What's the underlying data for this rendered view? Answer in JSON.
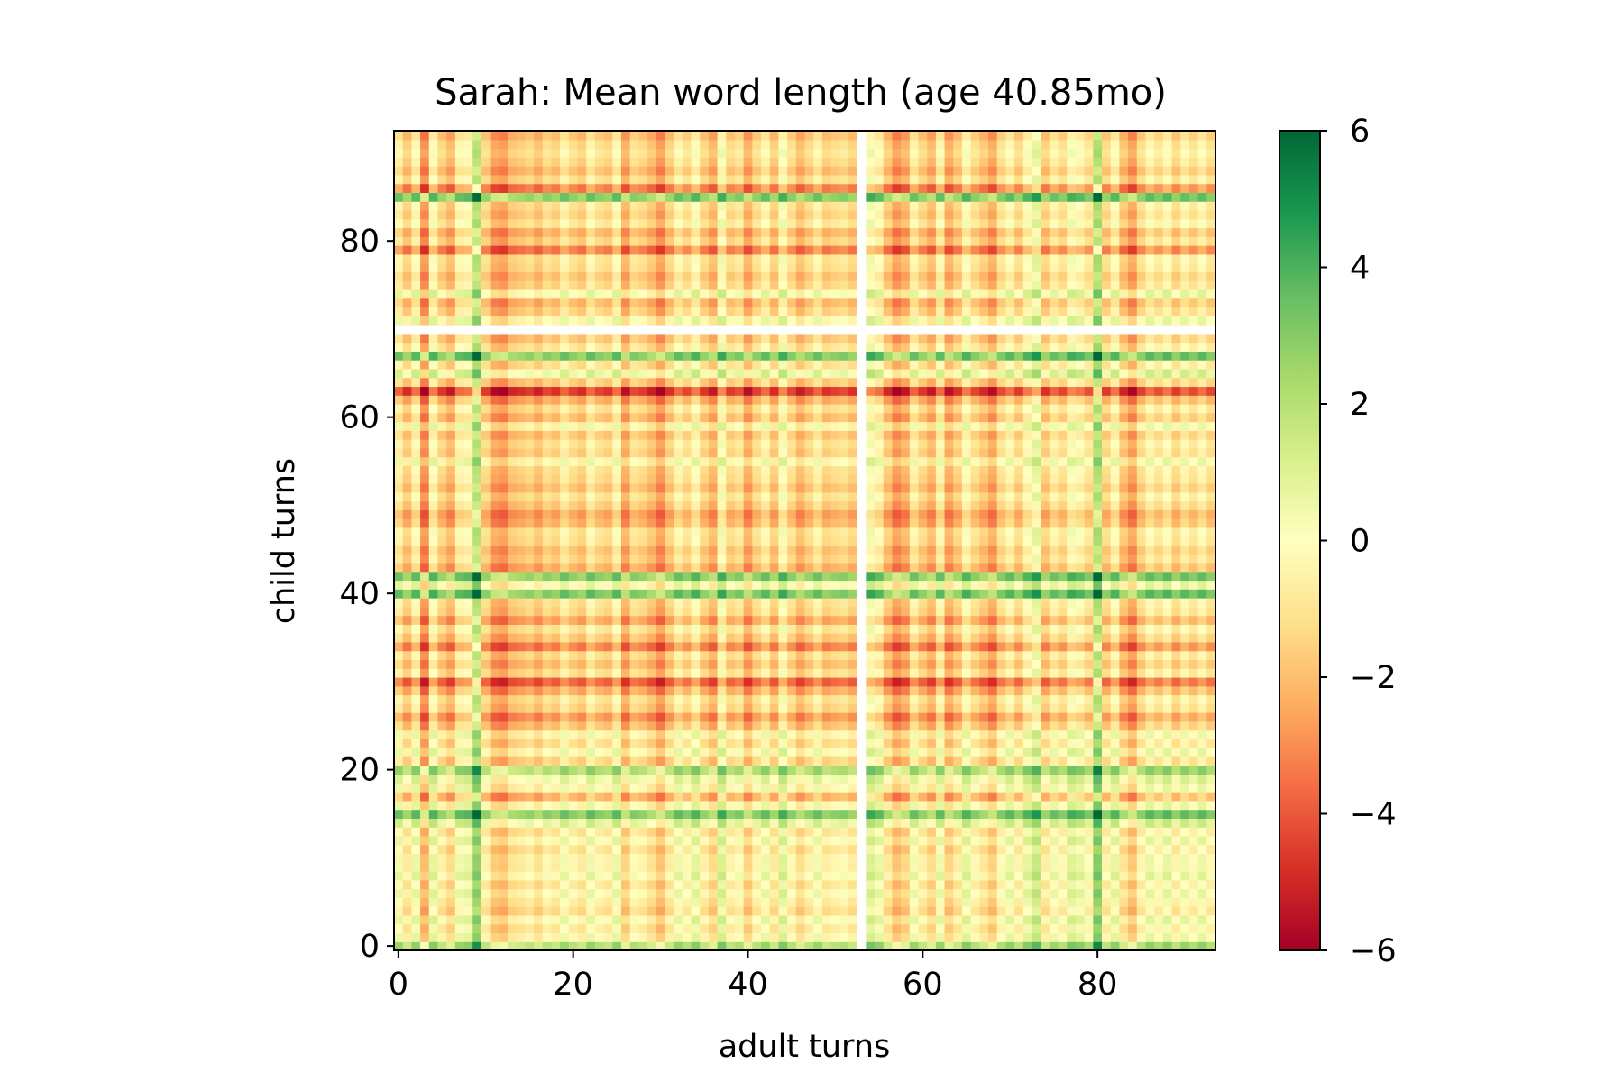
{
  "chart_data": {
    "type": "heatmap",
    "title": "Sarah: Mean word length (age 40.85mo)",
    "xlabel": "adult turns",
    "ylabel": "child turns",
    "n_cols": 94,
    "n_rows": 93,
    "xlim": [
      -0.5,
      93.5
    ],
    "ylim": [
      -0.5,
      92.5
    ],
    "xticks": [
      0,
      20,
      40,
      60,
      80
    ],
    "yticks": [
      0,
      20,
      40,
      60,
      80
    ],
    "colormap": "RdYlGn",
    "colorbar": {
      "min": -6,
      "max": 6,
      "ticks": [
        -6,
        -4,
        -2,
        0,
        2,
        4,
        6
      ]
    },
    "missing_col": 53,
    "missing_row": 70,
    "col_values": [
      0.2,
      -0.9,
      0.4,
      -2.2,
      0.6,
      -0.7,
      -1.4,
      0.3,
      0.5,
      2.6,
      -0.6,
      -1.8,
      -2.0,
      -1.1,
      -0.9,
      -0.6,
      -1.2,
      -0.4,
      -0.8,
      0.2,
      -0.5,
      -0.9,
      0.3,
      -0.4,
      -0.7,
      0.4,
      -1.6,
      -0.3,
      -0.6,
      -1.2,
      -2.0,
      -0.8,
      0.3,
      -0.4,
      0.6,
      -0.7,
      -1.4,
      0.9,
      -0.6,
      -0.2,
      -1.6,
      -0.5,
      0.3,
      -0.9,
      0.8,
      -0.4,
      -1.3,
      -0.6,
      0.2,
      -0.8,
      -0.5,
      -0.3,
      -0.8,
      null,
      0.9,
      0.4,
      -1.0,
      -2.0,
      -1.5,
      0.2,
      -0.7,
      -1.4,
      0.3,
      -1.6,
      -0.8,
      0.6,
      -0.4,
      -1.0,
      -1.7,
      -0.3,
      0.4,
      -0.6,
      0.6,
      1.4,
      -0.8,
      0.2,
      -0.4,
      0.8,
      0.5,
      -0.2,
      2.8,
      -0.6,
      0.5,
      -1.1,
      -1.9,
      -0.5,
      0.4,
      -0.2,
      0.5,
      -0.6,
      0.3,
      -0.3,
      0.4,
      -0.4
    ],
    "row_values": [
      2.4,
      0.3,
      -0.2,
      0.5,
      -0.6,
      -0.1,
      0.4,
      -0.3,
      0.6,
      0.1,
      0.2,
      -0.4,
      0.5,
      -0.3,
      1.2,
      3.4,
      0.4,
      -1.6,
      0.3,
      0.9,
      2.6,
      -0.8,
      0.4,
      -0.6,
      0.2,
      -1.3,
      -2.2,
      -0.9,
      -0.5,
      -1.8,
      -3.2,
      -0.6,
      -1.4,
      -0.7,
      -2.6,
      -1.2,
      -0.4,
      -1.9,
      -0.8,
      -0.5,
      3.5,
      0.6,
      3.3,
      -1.7,
      -0.9,
      -1.3,
      -0.6,
      -0.4,
      -1.6,
      -2.0,
      -1.1,
      -0.5,
      -1.3,
      -0.8,
      -0.6,
      0.3,
      -0.9,
      -0.5,
      -1.2,
      0.2,
      -1.4,
      -0.6,
      -1.8,
      -4.0,
      -1.1,
      1.0,
      -0.5,
      3.4,
      -0.3,
      -1.2,
      null,
      0.4,
      -0.9,
      -1.5,
      0.6,
      -0.8,
      -1.2,
      -0.6,
      -0.4,
      -2.7,
      -0.9,
      -1.6,
      -0.3,
      -0.9,
      -0.5,
      3.3,
      -2.6,
      -0.6,
      -1.4,
      -0.8,
      -0.4,
      -0.7,
      -1.3
    ]
  }
}
